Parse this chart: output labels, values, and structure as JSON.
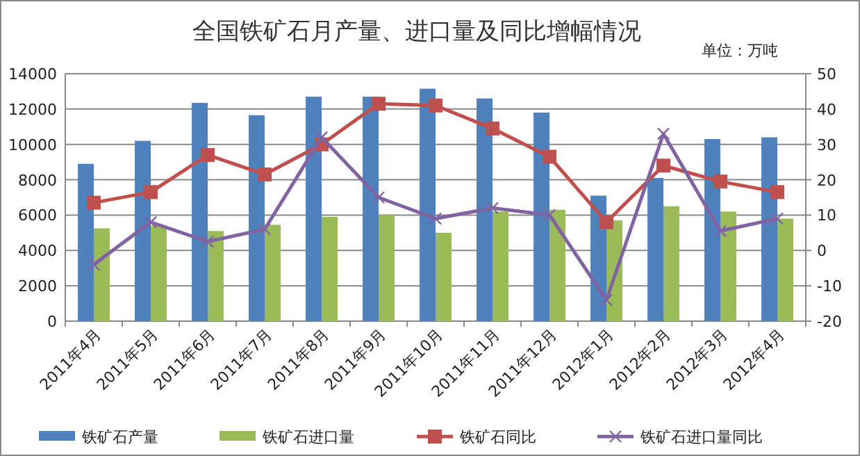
{
  "chart_data": {
    "type": "bar",
    "title": "全国铁矿石月产量、进口量及同比增幅情况",
    "annotations": [
      "单位：万吨"
    ],
    "categories": [
      "2011年4月",
      "2011年5月",
      "2011年6月",
      "2011年7月",
      "2011年8月",
      "2011年9月",
      "2011年10月",
      "2011年11月",
      "2011年12月",
      "2012年1月",
      "2012年2月",
      "2012年3月",
      "2012年4月"
    ],
    "series": [
      {
        "name": "铁矿石产量",
        "color": "#4f81bd",
        "values": [
          8900,
          10200,
          12350,
          11650,
          12700,
          12700,
          13150,
          12600,
          11800,
          7100,
          8100,
          10300,
          10400
        ]
      },
      {
        "name": "铁矿石进口量",
        "color": "#9bbb59",
        "values": [
          5250,
          5400,
          5100,
          5450,
          5900,
          6000,
          5000,
          6200,
          6300,
          5700,
          6500,
          6200,
          5800
        ]
      },
      {
        "name": "铁矿石同比",
        "type": "line",
        "axis": "y2",
        "marker": "square",
        "color": "#c0504d",
        "values": [
          13.5,
          16.5,
          27,
          21.5,
          30,
          41.5,
          41,
          34.5,
          26.5,
          8,
          24,
          19.5,
          16.5
        ]
      },
      {
        "name": "铁矿石进口量同比",
        "type": "line",
        "axis": "y2",
        "marker": "cross",
        "color": "#8064a2",
        "values": [
          -4,
          8,
          2.5,
          6,
          32,
          15,
          9,
          12,
          10,
          -14,
          33,
          5.5,
          9
        ]
      }
    ],
    "ylim": [
      0,
      14000
    ],
    "yticks": [
      0,
      2000,
      4000,
      6000,
      8000,
      10000,
      12000,
      14000
    ],
    "y2lim": [
      -20,
      50
    ],
    "y2ticks": [
      -20,
      -10,
      0,
      10,
      20,
      30,
      40,
      50
    ],
    "grid": "y",
    "legend": "bottom"
  }
}
